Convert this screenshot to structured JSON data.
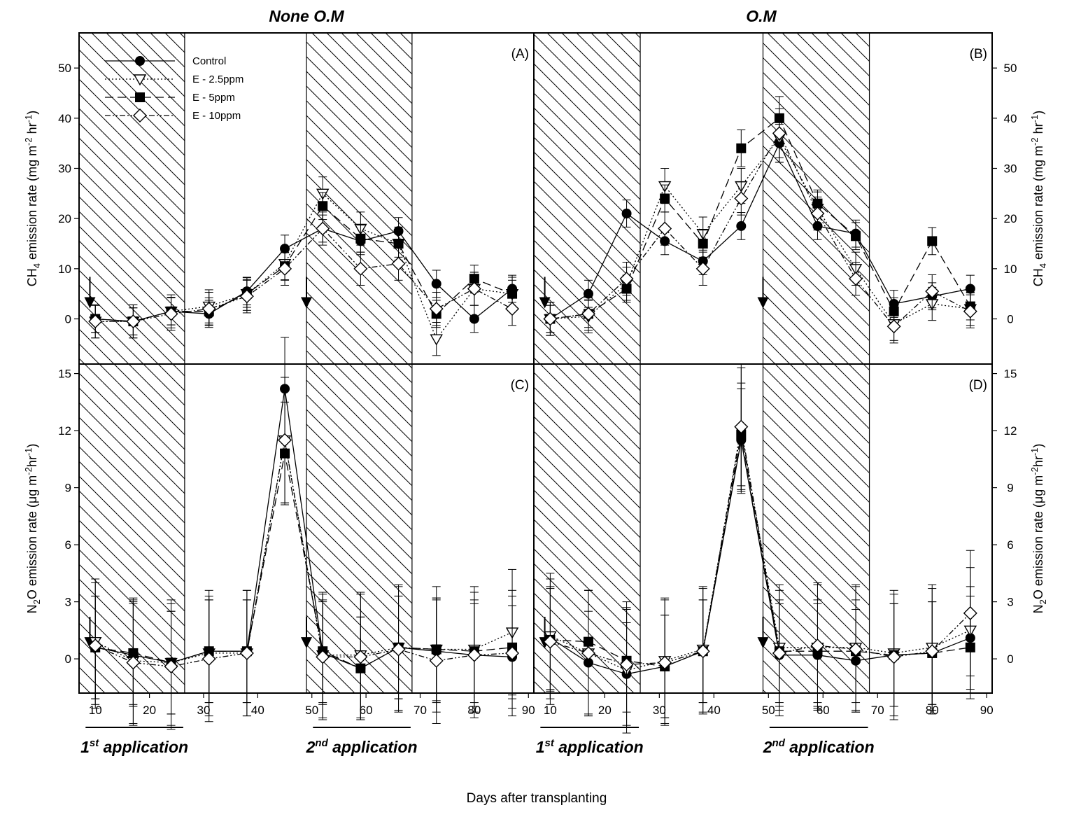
{
  "figure": {
    "x_label": "Days after transplanting",
    "column_titles": [
      "None O.M",
      "O.M"
    ],
    "legend": [
      "Control",
      "E - 2.5ppm",
      "E - 5ppm",
      "E - 10ppm"
    ],
    "application_labels": [
      {
        "base": "1",
        "sup": "st",
        "rest": " application"
      },
      {
        "base": "2",
        "sup": "nd",
        "rest": " application"
      }
    ]
  },
  "chart_data": [
    {
      "type": "line",
      "panel": "(A)",
      "column": "None O.M",
      "ylabel": "CH4 emission rate (mg m-2 hr-1)",
      "x": [
        10,
        17,
        24,
        31,
        38,
        45,
        52,
        59,
        66,
        73,
        80,
        87
      ],
      "xlim": [
        7,
        91
      ],
      "ylim": [
        -9,
        57
      ],
      "xticks": [
        10,
        20,
        30,
        40,
        50,
        60,
        70,
        80,
        90
      ],
      "yticks": [
        0,
        10,
        20,
        30,
        40,
        50
      ],
      "shaded_ranges": [
        [
          7,
          26.5
        ],
        [
          49,
          68.5
        ]
      ],
      "arrows_at_x": [
        9,
        49
      ],
      "series": [
        {
          "name": "Control",
          "values": [
            0,
            -0.5,
            1.5,
            1,
            5.5,
            14,
            18,
            15.5,
            17.5,
            7,
            0,
            6
          ]
        },
        {
          "name": "E - 2.5ppm",
          "values": [
            -0.5,
            -0.5,
            1.5,
            2.5,
            5,
            11,
            25,
            18,
            15,
            -4,
            6,
            5
          ]
        },
        {
          "name": "E - 5ppm",
          "values": [
            0,
            -0.5,
            1.5,
            1.5,
            5,
            10.5,
            22.5,
            16,
            15,
            1,
            8,
            5
          ]
        },
        {
          "name": "E - 10ppm",
          "values": [
            -0.5,
            -0.5,
            1,
            2,
            4.5,
            10,
            18,
            10,
            11,
            2,
            6,
            2
          ]
        }
      ]
    },
    {
      "type": "line",
      "panel": "(B)",
      "column": "O.M",
      "ylabel": "CH4 emission rate (mg m-2 hr-1)",
      "x": [
        10,
        17,
        24,
        31,
        38,
        45,
        52,
        59,
        66,
        73,
        80,
        87
      ],
      "xlim": [
        7,
        91
      ],
      "ylim": [
        -9,
        57
      ],
      "xticks": [
        10,
        20,
        30,
        40,
        50,
        60,
        70,
        80,
        90
      ],
      "yticks": [
        0,
        10,
        20,
        30,
        40,
        50
      ],
      "shaded_ranges": [
        [
          7,
          26.5
        ],
        [
          49,
          68.5
        ]
      ],
      "arrows_at_x": [
        9,
        49
      ],
      "series": [
        {
          "name": "Control",
          "values": [
            0,
            5,
            21,
            15.5,
            11.5,
            18.5,
            35,
            18.5,
            17,
            3,
            4.5,
            6
          ]
        },
        {
          "name": "E - 2.5ppm",
          "values": [
            0,
            0.5,
            7,
            26.5,
            17,
            26.5,
            36,
            22,
            10,
            -1,
            3,
            2
          ]
        },
        {
          "name": "E - 5ppm",
          "values": [
            0,
            1,
            6,
            24,
            15,
            34,
            40,
            23,
            16.5,
            1.5,
            15.5,
            2.5
          ]
        },
        {
          "name": "E - 10ppm",
          "values": [
            0,
            1,
            8,
            18,
            10,
            24,
            37,
            21,
            8,
            -1.5,
            5.5,
            1.5
          ]
        }
      ]
    },
    {
      "type": "line",
      "panel": "(C)",
      "column": "None O.M",
      "ylabel": "N2O emission rate (μg m-2hr-1)",
      "x": [
        10,
        17,
        24,
        31,
        38,
        45,
        52,
        59,
        66,
        73,
        80,
        87
      ],
      "xlim": [
        7,
        91
      ],
      "ylim": [
        -1.8,
        15.5
      ],
      "xticks": [
        10,
        20,
        30,
        40,
        50,
        60,
        70,
        80,
        90
      ],
      "yticks": [
        0,
        3,
        6,
        9,
        12,
        15
      ],
      "shaded_ranges": [
        [
          7,
          26.5
        ],
        [
          49,
          68.5
        ]
      ],
      "arrows_at_x": [
        9,
        49
      ],
      "series": [
        {
          "name": "Control",
          "values": [
            0.6,
            0.2,
            -0.2,
            0.4,
            0.4,
            14.2,
            0.3,
            -0.5,
            0.6,
            0.4,
            0.2,
            0.1
          ]
        },
        {
          "name": "E - 2.5ppm",
          "values": [
            0.9,
            -0.1,
            -0.2,
            0.3,
            0.3,
            11.5,
            0.2,
            0.2,
            0.6,
            0.5,
            0.5,
            1.4
          ]
        },
        {
          "name": "E - 5ppm",
          "values": [
            0.6,
            0.3,
            -0.2,
            0.4,
            0.4,
            10.8,
            0.4,
            -0.5,
            0.6,
            0.5,
            0.4,
            0.6
          ]
        },
        {
          "name": "E - 10ppm",
          "values": [
            0.7,
            -0.2,
            -0.4,
            0,
            0.3,
            11.5,
            0.1,
            0.1,
            0.5,
            -0.1,
            0.2,
            0.3
          ]
        }
      ]
    },
    {
      "type": "line",
      "panel": "(D)",
      "column": "O.M",
      "ylabel": "N2O emission rate (μg m-2hr-1)",
      "x": [
        10,
        17,
        24,
        31,
        38,
        45,
        52,
        59,
        66,
        73,
        80,
        87
      ],
      "xlim": [
        7,
        91
      ],
      "ylim": [
        -1.8,
        15.5
      ],
      "xticks": [
        10,
        20,
        30,
        40,
        50,
        60,
        70,
        80,
        90
      ],
      "yticks": [
        0,
        3,
        6,
        9,
        12,
        15
      ],
      "shaded_ranges": [
        [
          7,
          26.5
        ],
        [
          49,
          68.5
        ]
      ],
      "arrows_at_x": [
        9,
        49
      ],
      "series": [
        {
          "name": "Control",
          "values": [
            1.1,
            -0.2,
            -0.8,
            -0.4,
            0.4,
            11.5,
            0.2,
            0.2,
            -0.1,
            0.2,
            0.3,
            1.1
          ]
        },
        {
          "name": "E - 2.5ppm",
          "values": [
            1.2,
            0.3,
            -0.6,
            -0.1,
            0.5,
            12,
            0.6,
            0.6,
            0.6,
            0.3,
            0.6,
            1.5
          ]
        },
        {
          "name": "E - 5ppm",
          "values": [
            1,
            0.9,
            -0.1,
            -0.4,
            0.4,
            11.8,
            0.4,
            0.4,
            0.4,
            0.2,
            0.3,
            0.6
          ]
        },
        {
          "name": "E - 10ppm",
          "values": [
            0.9,
            0.3,
            -0.3,
            -0.2,
            0.4,
            12.2,
            0.3,
            0.7,
            0.5,
            0.1,
            0.4,
            2.4
          ]
        }
      ]
    }
  ]
}
